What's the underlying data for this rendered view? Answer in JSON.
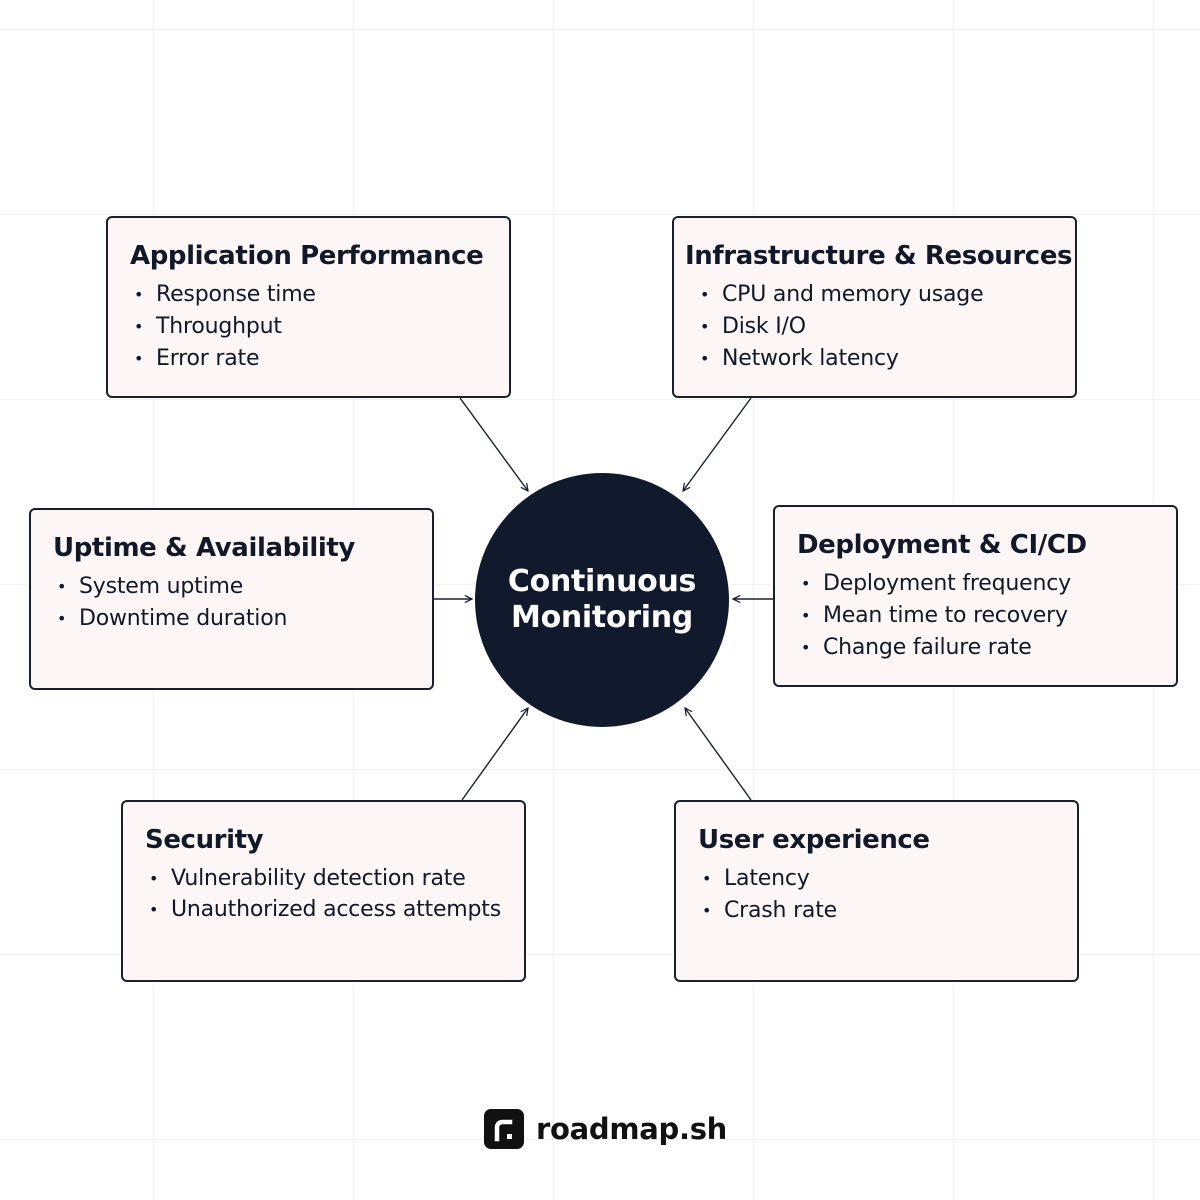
{
  "center": {
    "title": "Continuous Monitoring"
  },
  "cards": [
    {
      "id": "application-performance",
      "title": "Application Performance",
      "items": [
        "Response time",
        "Throughput",
        "Error rate"
      ]
    },
    {
      "id": "infrastructure-resources",
      "title": "Infrastructure & Resources",
      "items": [
        "CPU and memory usage",
        "Disk I/O",
        "Network latency"
      ]
    },
    {
      "id": "uptime-availability",
      "title": "Uptime & Availability",
      "items": [
        "System uptime",
        "Downtime duration"
      ]
    },
    {
      "id": "deployment-cicd",
      "title": "Deployment & CI/CD",
      "items": [
        "Deployment frequency",
        "Mean time to recovery",
        "Change failure rate"
      ]
    },
    {
      "id": "security",
      "title": "Security",
      "items": [
        "Vulnerability detection rate",
        "Unauthorized access attempts"
      ]
    },
    {
      "id": "user-experience",
      "title": "User experience",
      "items": [
        "Latency",
        "Crash rate"
      ]
    }
  ],
  "bullet_char": "•",
  "brand": {
    "name": "roadmap.sh",
    "icon": "roadmap-logo-icon"
  },
  "colors": {
    "card_bg": "#fdf6f6",
    "card_border": "#1a1f2e",
    "center_bg": "#111a2c",
    "center_text": "#ffffff",
    "text": "#111827",
    "connector": "#1a1f2e"
  }
}
